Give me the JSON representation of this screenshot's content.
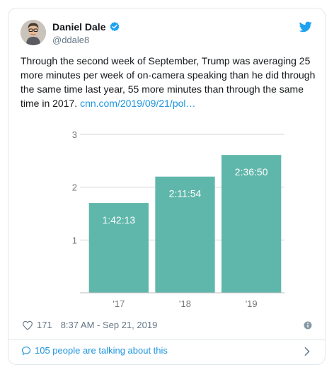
{
  "author": {
    "name": "Daniel Dale",
    "handle": "@ddale8",
    "verified": true
  },
  "tweet": {
    "text": "Through the second week of September, Trump was averaging 25 more minutes per week of on-camera speaking than he did through the same time last year, 55 more minutes than through the same time in 2017.",
    "link": "cnn.com/2019/09/21/pol…"
  },
  "chart_data": {
    "type": "bar",
    "categories": [
      "'17",
      "'18",
      "'19"
    ],
    "values": [
      1.7,
      2.2,
      2.61
    ],
    "value_labels": [
      "1:42:13",
      "2:11:54",
      "2:36:50"
    ],
    "yticks": [
      1,
      2,
      3
    ],
    "ylim": [
      0,
      3
    ],
    "grid": true,
    "bar_color": "#5fb7ab"
  },
  "meta": {
    "likes": "171",
    "timestamp": "8:37 AM - Sep 21, 2019"
  },
  "footer": {
    "talking": "105 people are talking about this"
  },
  "colors": {
    "link": "#1b95e0",
    "verified": "#1da1f2",
    "muted": "#657786"
  },
  "icons": {
    "brand": "twitter-bird-icon",
    "like": "heart-icon",
    "info": "info-icon",
    "reply": "speech-bubble-icon",
    "more": "chevron-right-icon"
  }
}
